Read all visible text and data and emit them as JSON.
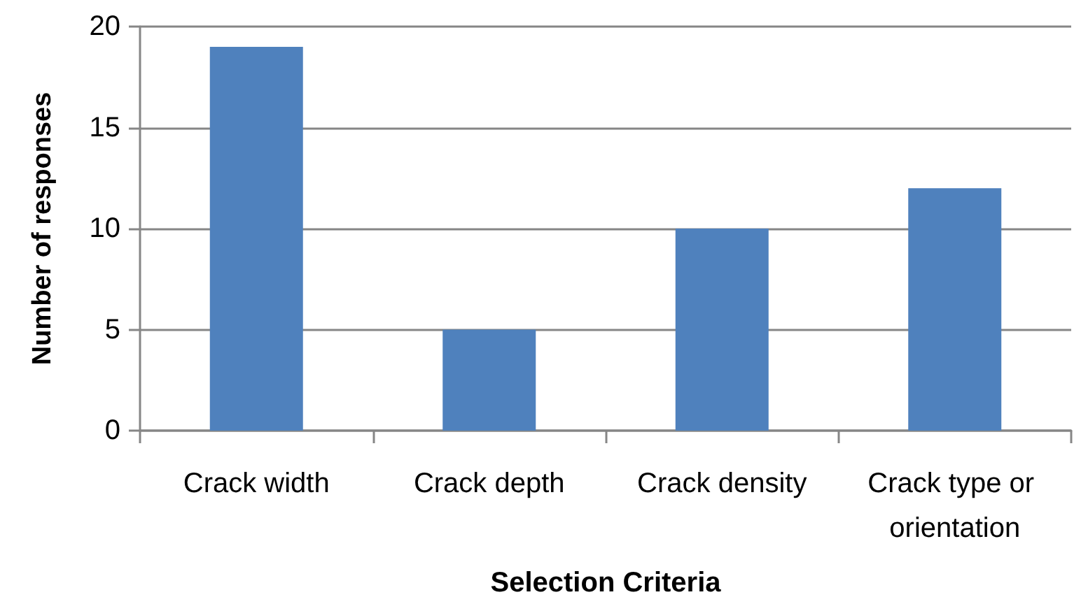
{
  "chart_data": {
    "type": "bar",
    "xlabel": "Selection Criteria",
    "ylabel": "Number of responses",
    "categories": [
      "Crack width",
      "Crack depth",
      "Crack density",
      "Crack type or orientation"
    ],
    "values": [
      19,
      5,
      10,
      12
    ],
    "color": "#4f81bd",
    "ylim": [
      0,
      20
    ],
    "yticks": [
      0,
      5,
      10,
      15,
      20
    ],
    "grid": "y"
  }
}
